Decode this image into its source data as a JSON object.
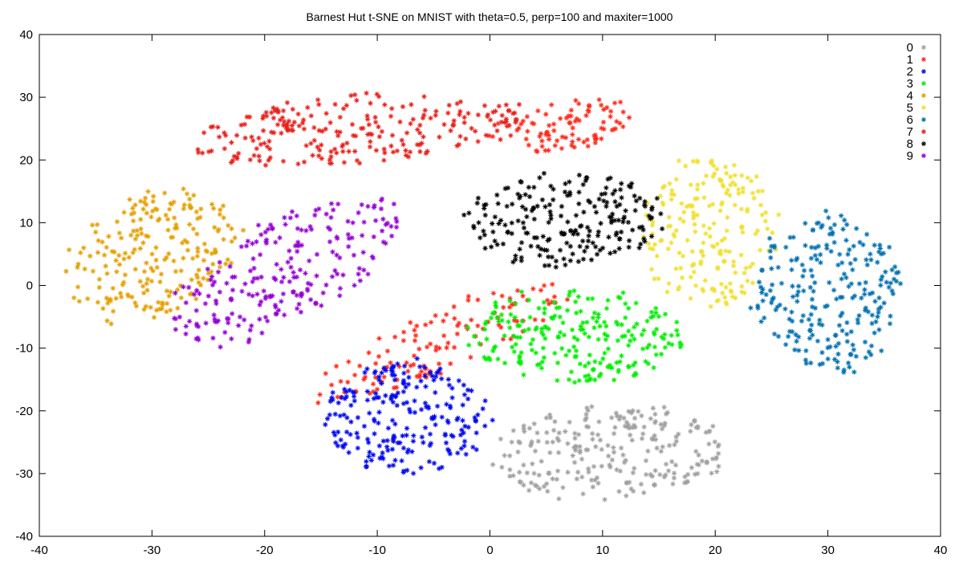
{
  "chart_data": {
    "type": "scatter",
    "title": "Barnest Hut t-SNE on MNIST with theta=0.5, perp=100 and maxiter=1000",
    "xlabel": "",
    "ylabel": "",
    "xlim": [
      -40,
      40
    ],
    "ylim": [
      -40,
      40
    ],
    "x_ticks": [
      -40,
      -30,
      -20,
      -10,
      0,
      10,
      20,
      30,
      40
    ],
    "y_ticks": [
      -40,
      -30,
      -20,
      -10,
      0,
      10,
      20,
      30,
      40
    ],
    "grid": false,
    "legend_position": "top-right",
    "marker": "asterisk",
    "series": [
      {
        "name": "0",
        "color": "#a0a0a0",
        "clusters": [
          {
            "cx": 10.5,
            "cy": -26.5,
            "rx": 10.5,
            "ry": 7.5,
            "angle": 5,
            "n": 240
          }
        ]
      },
      {
        "name": "1",
        "color": "#ff2a1a",
        "clusters": [
          {
            "cx": -4.5,
            "cy": -9.0,
            "rx": 14.0,
            "ry": 4.2,
            "angle": 38,
            "n": 130
          },
          {
            "cx": 6.5,
            "cy": 25.5,
            "rx": 6.5,
            "ry": 3.8,
            "angle": 20,
            "n": 90
          }
        ]
      },
      {
        "name": "2",
        "color": "#0008ee",
        "clusters": [
          {
            "cx": -7.5,
            "cy": -21.0,
            "rx": 7.5,
            "ry": 9.0,
            "angle": 0,
            "n": 230
          }
        ]
      },
      {
        "name": "3",
        "color": "#00ee00",
        "clusters": [
          {
            "cx": 7.5,
            "cy": -8.0,
            "rx": 9.5,
            "ry": 7.5,
            "angle": -5,
            "n": 230
          }
        ]
      },
      {
        "name": "4",
        "color": "#e4a000",
        "clusters": [
          {
            "cx": -30.0,
            "cy": 4.5,
            "rx": 7.0,
            "ry": 11.0,
            "angle": -25,
            "n": 220
          }
        ]
      },
      {
        "name": "5",
        "color": "#f0e030",
        "clusters": [
          {
            "cx": 19.5,
            "cy": 8.5,
            "rx": 6.0,
            "ry": 12.0,
            "angle": 0,
            "n": 200
          }
        ]
      },
      {
        "name": "6",
        "color": "#0070b0",
        "clusters": [
          {
            "cx": 30.0,
            "cy": -1.5,
            "rx": 6.5,
            "ry": 13.0,
            "angle": 0,
            "n": 240
          }
        ]
      },
      {
        "name": "7",
        "color": "#e8201a",
        "clusters": [
          {
            "cx": -12.0,
            "cy": 25.0,
            "rx": 15.0,
            "ry": 5.5,
            "angle": 8,
            "n": 240
          }
        ]
      },
      {
        "name": "8",
        "color": "#000000",
        "clusters": [
          {
            "cx": 6.5,
            "cy": 10.5,
            "rx": 9.0,
            "ry": 7.5,
            "angle": 10,
            "n": 220
          }
        ]
      },
      {
        "name": "9",
        "color": "#9400d3",
        "clusters": [
          {
            "cx": -18.0,
            "cy": 2.5,
            "rx": 6.5,
            "ry": 14.5,
            "angle": -40,
            "n": 230
          }
        ]
      }
    ]
  }
}
